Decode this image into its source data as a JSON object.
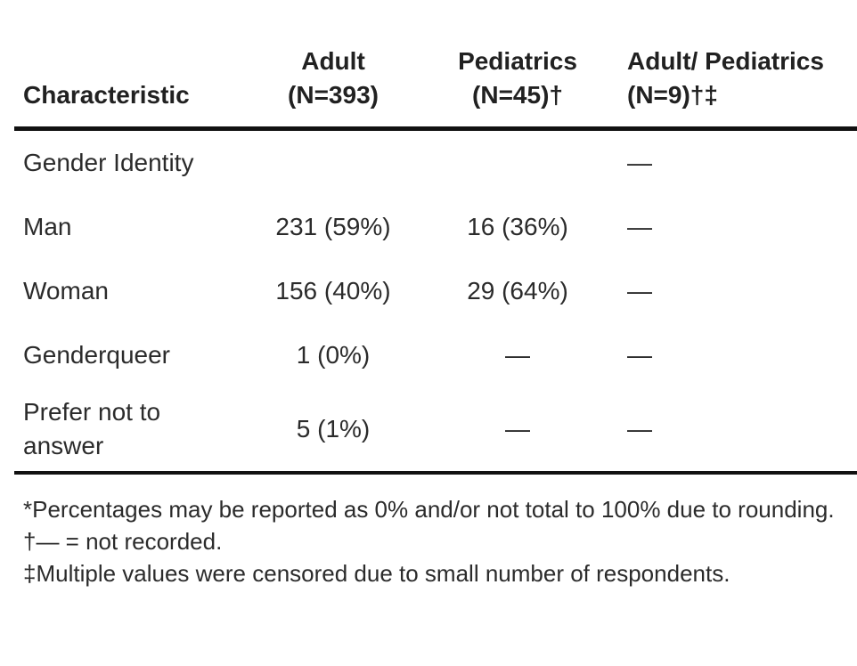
{
  "table": {
    "headers": [
      {
        "line1": "",
        "line2": "Characteristic"
      },
      {
        "line1": "Adult",
        "line2": "(N=393)"
      },
      {
        "line1": "Pediatrics",
        "line2": "(N=45)†"
      },
      {
        "line1": "Adult/ Pediatrics",
        "line2": "(N=9)†‡"
      }
    ],
    "rows": [
      {
        "label": "Gender Identity",
        "adult": "",
        "pediatrics": "",
        "adult_pediatrics": "—"
      },
      {
        "label": "Man",
        "adult": "231 (59%)",
        "pediatrics": "16 (36%)",
        "adult_pediatrics": "—"
      },
      {
        "label": "Woman",
        "adult": "156 (40%)",
        "pediatrics": "29 (64%)",
        "adult_pediatrics": "—"
      },
      {
        "label": "Genderqueer",
        "adult": "1 (0%)",
        "pediatrics": "—",
        "adult_pediatrics": "—"
      },
      {
        "label_line1": "Prefer not to",
        "label_line2": "answer",
        "adult": "5 (1%)",
        "pediatrics": "—",
        "adult_pediatrics": "—"
      }
    ]
  },
  "footnotes": [
    "*Percentages may be reported as 0% and/or not total to 100% due to rounding.",
    "†— = not recorded.",
    "‡Multiple values were censored due to small number of respondents."
  ]
}
